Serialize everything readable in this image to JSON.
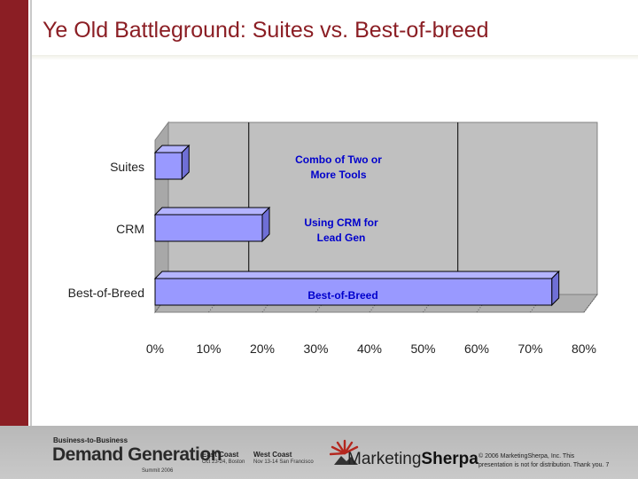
{
  "slide": {
    "title": "Ye Old Battleground: Suites vs. Best-of-breed"
  },
  "chart_data": {
    "type": "bar",
    "orientation": "horizontal",
    "style": "3d",
    "categories": [
      "Suites",
      "CRM",
      "Best-of-Breed"
    ],
    "values": [
      5,
      20,
      74
    ],
    "bar_labels": [
      "Combo of Two or More Tools",
      "Using CRM for Lead Gen",
      "Best-of-Breed"
    ],
    "x_ticks": [
      "0%",
      "10%",
      "20%",
      "30%",
      "40%",
      "50%",
      "60%",
      "70%",
      "80%"
    ],
    "xlim": [
      0,
      80
    ],
    "grid_values": [
      15,
      54
    ],
    "bar_color": "#9999ff",
    "label_color": "#0000cc",
    "plot_color": "#c0c0c0"
  },
  "footer": {
    "b2b": "Business-to-Business",
    "brand": "Demand Generation",
    "summit": "Summit 2006",
    "east_head": "East Coast",
    "east_detail": "Oct 23-24, Boston",
    "west_head": "West Coast",
    "west_detail": "Nov 13-14 San Francisco",
    "ms_prefix": "Marketing",
    "ms_suffix": "Sherpa",
    "copyright_1": "© 2006 MarketingSherpa, Inc. This",
    "copyright_2": "presentation is not for distribution. Thank you.",
    "page": "7"
  }
}
